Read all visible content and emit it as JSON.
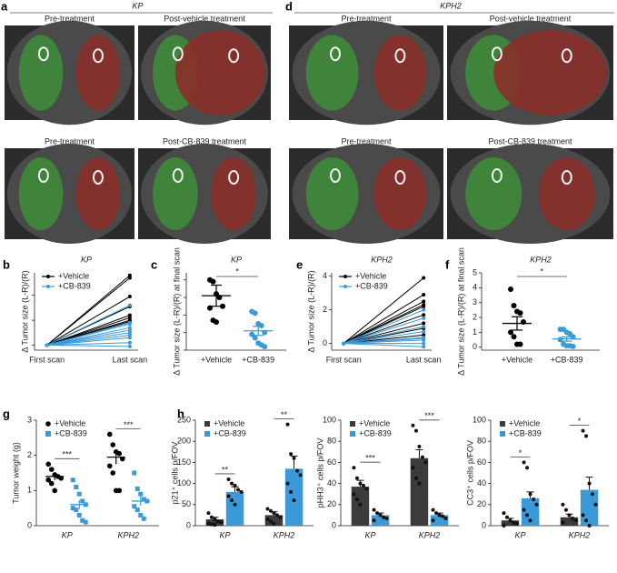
{
  "image_panels": [
    {
      "panel": "a",
      "title": "KP",
      "captions": [
        "Pre-treatment",
        "Post-vehicle treatment",
        "Pre-treatment",
        "Post-CB-839 treatment"
      ]
    },
    {
      "panel": "d",
      "title": "KPH2",
      "captions": [
        "Pre-treatment",
        "Post-vehicle treatment",
        "Pre-treatment",
        "Post-CB-839 treatment"
      ]
    }
  ],
  "chart_data": [
    {
      "type": "slope",
      "panel": "b",
      "title": "KP",
      "ylabel": "Δ Tumor size (L-R)/(R)",
      "categories": [
        "First scan",
        "Last scan"
      ],
      "ylim": [
        -0.2,
        2.9
      ],
      "yticks": [
        0,
        1,
        2
      ],
      "tick_labels": false,
      "series": [
        {
          "name": "+Vehicle",
          "color": "#000000",
          "lines": [
            [
              0,
              2.8
            ],
            [
              0,
              2.7
            ],
            [
              0,
              1.95
            ],
            [
              0,
              1.55
            ],
            [
              0,
              1.2
            ],
            [
              0,
              1.1
            ],
            [
              0,
              1.0
            ],
            [
              0,
              0.95
            ]
          ]
        },
        {
          "name": "+CB-839",
          "color": "#3a9ad9",
          "lines": [
            [
              0,
              1.6
            ],
            [
              0,
              0.9
            ],
            [
              0,
              0.85
            ],
            [
              0,
              0.7
            ],
            [
              0,
              0.6
            ],
            [
              0,
              0.5
            ],
            [
              0,
              0.4
            ],
            [
              0,
              0.3
            ],
            [
              0,
              0.1
            ],
            [
              0,
              -0.05
            ]
          ]
        }
      ]
    },
    {
      "type": "dot",
      "panel": "c",
      "title": "KP",
      "ylabel": "Δ Tumor size (L-R)/(R) at final scan",
      "categories": [
        "+Vehicle",
        "+CB-839"
      ],
      "colors": [
        "#000000",
        "#3a9ad9"
      ],
      "ylim": [
        0,
        2.2
      ],
      "yticks": [
        0,
        0.5,
        1,
        1.5,
        2
      ],
      "tick_labels": false,
      "points": [
        [
          2.0,
          1.95,
          1.6,
          1.5,
          1.25,
          1.2,
          0.85,
          0.8
        ],
        [
          1.1,
          1.05,
          0.75,
          0.7,
          0.5,
          0.45,
          0.35,
          0.2,
          0.15,
          0.1
        ]
      ],
      "values": [
        1.55,
        0.55
      ],
      "errors": [
        0.3,
        0.13
      ],
      "significance": "*"
    },
    {
      "type": "slope",
      "panel": "e",
      "title": "KPH2",
      "ylabel": "Δ Tumor size (L-R)/(R)",
      "categories": [
        "First scan",
        "Last scan"
      ],
      "ylim": [
        -0.4,
        4.2
      ],
      "yticks": [
        0,
        2,
        4
      ],
      "series": [
        {
          "name": "+Vehicle",
          "color": "#000000",
          "lines": [
            [
              0,
              3.9
            ],
            [
              0,
              2.9
            ],
            [
              0,
              2.5
            ],
            [
              0,
              2.3
            ],
            [
              0,
              2.2
            ],
            [
              0,
              1.7
            ],
            [
              0,
              1.2
            ],
            [
              0,
              0.9
            ],
            [
              0,
              0.5
            ]
          ]
        },
        {
          "name": "+CB-839",
          "color": "#3a9ad9",
          "lines": [
            [
              0,
              2.0
            ],
            [
              0,
              1.5
            ],
            [
              0,
              1.0
            ],
            [
              0,
              0.7
            ],
            [
              0,
              0.35
            ],
            [
              0,
              0.3
            ],
            [
              0,
              0.2
            ],
            [
              0,
              0.0
            ],
            [
              0,
              -0.2
            ]
          ]
        }
      ]
    },
    {
      "type": "dot",
      "panel": "f",
      "title": "KPH2",
      "ylabel": "Δ Tumor size (L-R)/(R) at final scan",
      "categories": [
        "+Vehicle",
        "+CB-839"
      ],
      "colors": [
        "#000000",
        "#3a9ad9"
      ],
      "ylim": [
        -0.2,
        5
      ],
      "yticks": [
        0,
        1,
        2,
        3,
        4,
        5
      ],
      "points": [
        [
          3.9,
          2.8,
          2.4,
          2.3,
          1.7,
          1.0,
          0.7,
          0.2,
          0.2
        ],
        [
          1.2,
          1.2,
          1.0,
          0.9,
          0.7,
          0.5,
          0.2,
          0.1,
          0.1,
          0.05
        ]
      ],
      "values": [
        1.6,
        0.55
      ],
      "errors": [
        0.45,
        0.15
      ],
      "significance": "*"
    },
    {
      "type": "grouped_dot",
      "panel": "g",
      "ylabel": "Tumor weight (g)",
      "categories": [
        "KP",
        "KPH2"
      ],
      "ylim": [
        0,
        3
      ],
      "yticks": [
        0,
        1,
        2,
        3
      ],
      "significance": [
        "***",
        "***"
      ],
      "series": [
        {
          "name": "+Vehicle",
          "color": "#000000",
          "marker": "circle",
          "values": [
            1.4,
            1.95
          ],
          "errors": [
            0.1,
            0.2
          ],
          "points": [
            [
              1.75,
              1.6,
              1.45,
              1.4,
              1.35,
              1.3,
              1.2,
              1.0
            ],
            [
              2.6,
              2.3,
              2.1,
              2.05,
              1.9,
              1.7,
              1.5,
              1.0,
              1.0
            ]
          ]
        },
        {
          "name": "+CB-839",
          "color": "#3a9ad9",
          "marker": "square",
          "values": [
            0.6,
            0.7
          ],
          "errors": [
            0.13,
            0.13
          ],
          "points": [
            [
              1.3,
              1.1,
              0.9,
              0.7,
              0.6,
              0.5,
              0.45,
              0.3,
              0.15,
              0.1
            ],
            [
              1.5,
              1.05,
              0.9,
              0.75,
              0.7,
              0.55,
              0.45,
              0.3,
              0.2
            ]
          ]
        }
      ]
    },
    {
      "type": "bar",
      "panel": "h",
      "ylabel": "p21⁺ cells p/FOV",
      "categories": [
        "KP",
        "KPH2"
      ],
      "ylim": [
        0,
        250
      ],
      "yticks": [
        0,
        50,
        100,
        150,
        200,
        250
      ],
      "significance": [
        "**",
        "**"
      ],
      "series": [
        {
          "name": "+Vehicle",
          "color": "#3b3b3b",
          "values": [
            15,
            25
          ],
          "errors": [
            5,
            8
          ],
          "points": [
            [
              30,
              20,
              15,
              10,
              8,
              5,
              3,
              2
            ],
            [
              40,
              35,
              30,
              25,
              20,
              15,
              10,
              5
            ]
          ]
        },
        {
          "name": "+CB-839",
          "color": "#3a9ad9",
          "values": [
            80,
            135
          ],
          "errors": [
            12,
            30
          ],
          "points": [
            [
              110,
              100,
              95,
              85,
              80,
              70,
              60,
              50
            ],
            [
              240,
              170,
              160,
              130,
              120,
              100,
              80,
              60
            ]
          ]
        }
      ]
    },
    {
      "type": "bar",
      "ylabel": "pHH3⁺ cells p/FOV",
      "categories": [
        "KP",
        "KPH2"
      ],
      "ylim": [
        0,
        100
      ],
      "yticks": [
        0,
        20,
        40,
        60,
        80,
        100
      ],
      "significance": [
        "***",
        "***"
      ],
      "series": [
        {
          "name": "+Vehicle",
          "color": "#3b3b3b",
          "values": [
            37,
            64
          ],
          "errors": [
            6,
            8
          ],
          "points": [
            [
              55,
              45,
              40,
              38,
              35,
              30,
              25,
              20
            ],
            [
              95,
              90,
              75,
              65,
              60,
              55,
              45,
              40
            ]
          ]
        },
        {
          "name": "+CB-839",
          "color": "#3a9ad9",
          "values": [
            10,
            10
          ],
          "errors": [
            2,
            2
          ],
          "points": [
            [
              15,
              12,
              10,
              8,
              7,
              5
            ],
            [
              15,
              12,
              10,
              9,
              7,
              5
            ]
          ]
        }
      ]
    },
    {
      "type": "bar",
      "ylabel": "CC3⁺ cells p/FOV",
      "categories": [
        "KP",
        "KPH2"
      ],
      "ylim": [
        0,
        100
      ],
      "yticks": [
        0,
        20,
        40,
        60,
        80,
        100
      ],
      "significance": [
        "*",
        "*"
      ],
      "series": [
        {
          "name": "+Vehicle",
          "color": "#3b3b3b",
          "values": [
            5,
            8
          ],
          "errors": [
            2,
            3
          ],
          "points": [
            [
              12,
              8,
              5,
              3,
              2,
              0
            ],
            [
              20,
              15,
              10,
              7,
              5,
              3
            ]
          ]
        },
        {
          "name": "+CB-839",
          "color": "#3a9ad9",
          "values": [
            26,
            34
          ],
          "errors": [
            6,
            12
          ],
          "points": [
            [
              60,
              55,
              30,
              25,
              20,
              15,
              10,
              5
            ],
            [
              90,
              85,
              40,
              30,
              20,
              10,
              5,
              0
            ]
          ]
        }
      ]
    }
  ]
}
